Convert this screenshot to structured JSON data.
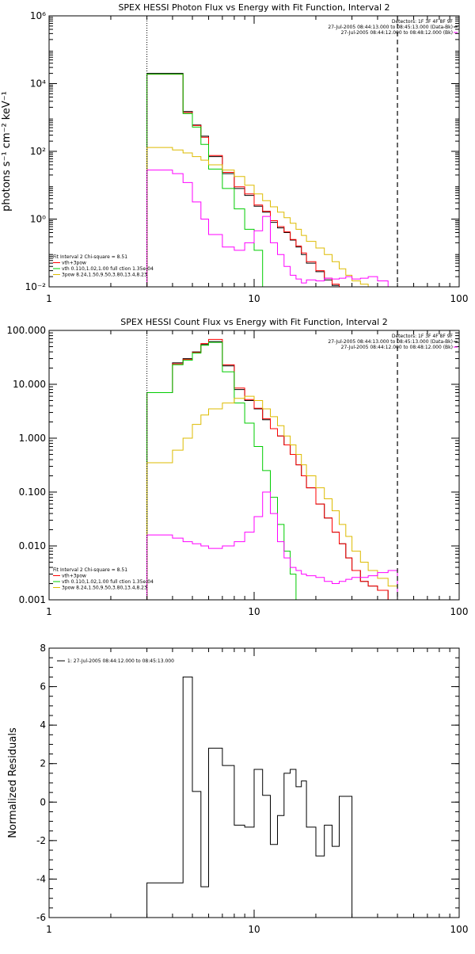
{
  "chart_data": [
    {
      "type": "line",
      "title": "SPEX HESSI Photon Flux vs Energy with Fit Function, Interval 2",
      "ylabel": "photons s⁻¹ cm⁻² keV⁻¹",
      "xscale": "log",
      "yscale": "log",
      "xlim": [
        1,
        100
      ],
      "ylim": [
        0.01,
        1000000
      ],
      "x_ticks": [
        "1",
        "10",
        "100"
      ],
      "y_ticks": [
        "10⁻²",
        "10⁰",
        "10²",
        "10⁴",
        "10⁶"
      ],
      "edges": [
        3,
        4,
        4.5,
        5,
        5.5,
        6,
        7,
        8,
        9,
        10,
        11,
        12,
        13,
        14,
        15,
        16,
        17,
        18,
        20,
        22,
        24,
        26,
        28,
        30,
        33,
        36,
        40,
        45,
        50
      ],
      "vlines": [
        {
          "x": 3,
          "style": "dotted"
        },
        {
          "x": 50,
          "style": "dashed"
        }
      ],
      "legend_top": [
        "Detectors: 1F 3F 4F 8F 9F",
        "27-Jul-2005 08:44:13.000 to 08:45:13.000 (Data-Bk)",
        "27-Jul-2005 08:44:12.000 to 08:48:12.000 (Bk)"
      ],
      "legend_bottom": [
        "Fit Interval 2   Chi-square = 8.51",
        "vth+3pow",
        "vth 0.110,1.02,1.00  full ction 1.35e-04",
        "3pow 8.24,1.50,9.50,3.80,13.4,8.23"
      ],
      "series": [
        {
          "name": "Data-Bk",
          "color": "#000000",
          "values": [
            20000,
            20000,
            1500,
            600,
            280,
            70,
            22,
            8,
            5,
            2.4,
            1.6,
            0.8,
            0.55,
            0.4,
            0.24,
            0.15,
            0.09,
            0.05,
            0.028,
            0.016,
            0.011,
            0.01
          ]
        },
        {
          "name": "vth+3pow",
          "color": "#ff0000",
          "values": [
            19000,
            19000,
            1400,
            580,
            260,
            75,
            24,
            9,
            5.5,
            2.6,
            1.7,
            0.9,
            0.6,
            0.42,
            0.25,
            0.16,
            0.1,
            0.055,
            0.03,
            0.018,
            0.012,
            0.01
          ]
        },
        {
          "name": "vth",
          "color": "#00cc00",
          "values": [
            19000,
            19000,
            1300,
            520,
            160,
            30,
            8,
            2,
            0.5,
            0.12
          ]
        },
        {
          "name": "3pow",
          "color": "#ddbb00",
          "values": [
            130,
            110,
            90,
            70,
            55,
            40,
            28,
            18,
            10,
            5.5,
            3.5,
            2.3,
            1.6,
            1.1,
            0.75,
            0.5,
            0.33,
            0.22,
            0.14,
            0.09,
            0.055,
            0.034,
            0.022,
            0.015,
            0.012
          ]
        },
        {
          "name": "Bk",
          "color": "#ff00ff",
          "values": [
            28,
            22,
            12,
            3.2,
            1.0,
            0.35,
            0.15,
            0.12,
            0.2,
            0.45,
            1.2,
            0.2,
            0.09,
            0.04,
            0.022,
            0.017,
            0.013,
            0.016,
            0.015,
            0.018,
            0.017,
            0.018,
            0.02,
            0.017,
            0.018,
            0.02,
            0.015
          ]
        }
      ]
    },
    {
      "type": "line",
      "title": "SPEX HESSI Count Flux vs Energy with Fit Function, Interval 2",
      "ylabel": "",
      "xscale": "log",
      "yscale": "log",
      "xlim": [
        1,
        100
      ],
      "ylim": [
        0.001,
        100
      ],
      "x_ticks": [
        "1",
        "10",
        "100"
      ],
      "y_ticks": [
        "0.001",
        "0.010",
        "0.100",
        "1.000",
        "10.000",
        "100.000"
      ],
      "edges": [
        3,
        4,
        4.5,
        5,
        5.5,
        6,
        7,
        8,
        9,
        10,
        11,
        12,
        13,
        14,
        15,
        16,
        17,
        18,
        20,
        22,
        24,
        26,
        28,
        30,
        33,
        36,
        40,
        45,
        50
      ],
      "vlines": [
        {
          "x": 3,
          "style": "dotted"
        },
        {
          "x": 50,
          "style": "dashed"
        }
      ],
      "legend_top": [
        "Detectors: 1F 3F 4F 8F 9F",
        "27-Jul-2005 08:44:13.000 to 08:45:13.000 (Data-Bk)",
        "27-Jul-2005 08:44:12.000 to 08:48:12.000 (Bk)"
      ],
      "legend_bottom": [
        "Fit Interval 2   Chi-square = 8.51",
        "vth+3pow",
        "vth 0.110,1.02,1.00  full ction 1.35e-04",
        "3pow 8.24,1.50,9.50,3.80,13.4,8.23"
      ],
      "series": [
        {
          "name": "Data-Bk",
          "color": "#000000",
          "values": [
            7,
            25,
            30,
            40,
            55,
            62,
            22,
            8,
            5,
            3.5,
            2.2,
            1.5,
            1.1,
            0.75,
            0.5,
            0.32,
            0.2,
            0.12,
            0.06,
            0.033,
            0.018,
            0.011,
            0.006,
            0.0035,
            0.0022,
            0.0018,
            0.0015,
            0.001
          ]
        },
        {
          "name": "vth+3pow",
          "color": "#ff0000",
          "values": [
            7,
            24,
            29,
            39,
            57,
            68,
            23,
            8.5,
            5.2,
            3.6,
            2.3,
            1.5,
            1.1,
            0.75,
            0.5,
            0.32,
            0.2,
            0.12,
            0.06,
            0.033,
            0.018,
            0.011,
            0.006,
            0.0035,
            0.0022,
            0.0018,
            0.0015,
            0.001
          ]
        },
        {
          "name": "vth",
          "color": "#00cc00",
          "values": [
            7,
            23,
            28,
            38,
            53,
            60,
            17,
            4.5,
            1.9,
            0.7,
            0.25,
            0.08,
            0.025,
            0.008,
            0.003,
            0.001
          ]
        },
        {
          "name": "3pow",
          "color": "#ddbb00",
          "values": [
            0.35,
            0.6,
            1,
            1.8,
            2.7,
            3.5,
            4.5,
            5.5,
            6,
            5,
            3.5,
            2.5,
            1.7,
            1.1,
            0.75,
            0.5,
            0.32,
            0.2,
            0.12,
            0.075,
            0.045,
            0.025,
            0.015,
            0.008,
            0.005,
            0.0035,
            0.0025,
            0.0018
          ]
        },
        {
          "name": "Bk",
          "color": "#ff00ff",
          "values": [
            0.016,
            0.014,
            0.012,
            0.011,
            0.01,
            0.009,
            0.01,
            0.012,
            0.018,
            0.035,
            0.1,
            0.04,
            0.012,
            0.006,
            0.004,
            0.0035,
            0.003,
            0.0028,
            0.0026,
            0.0022,
            0.002,
            0.0022,
            0.0024,
            0.0026,
            0.0026,
            0.0028,
            0.0032,
            0.0035
          ]
        }
      ]
    },
    {
      "type": "line",
      "title": "",
      "ylabel": "Normalized Residuals",
      "xscale": "log",
      "yscale": "linear",
      "xlim": [
        1,
        100
      ],
      "ylim": [
        -6,
        8
      ],
      "x_ticks": [
        "1",
        "10",
        "100"
      ],
      "y_ticks": [
        "-6",
        "-4",
        "-2",
        "0",
        "2",
        "4",
        "6",
        "8"
      ],
      "edges": [
        3,
        4,
        4.5,
        5,
        5.5,
        6,
        7,
        8,
        9,
        10,
        11,
        12,
        13,
        14,
        15,
        16,
        17,
        18,
        20,
        22,
        24,
        26,
        28,
        30,
        33,
        36,
        40,
        45,
        50
      ],
      "legend_top": [
        "1: 27-Jul-2005 08:44:12.000 to 08:45:13.000"
      ],
      "series": [
        {
          "name": "1: 27-Jul-2005 08:44:12.000 to 08:45:13.000",
          "color": "#000000",
          "values": [
            -4.2,
            -4.2,
            6.5,
            0.55,
            -4.4,
            2.8,
            1.9,
            -1.2,
            -1.3,
            1.7,
            0.35,
            -2.2,
            -0.7,
            1.5,
            1.7,
            0.8,
            1.1,
            -1.3,
            -2.8,
            -1.2,
            -2.3,
            0.3,
            0.3,
            -6,
            -6,
            -6,
            -6,
            -6
          ]
        }
      ]
    }
  ]
}
